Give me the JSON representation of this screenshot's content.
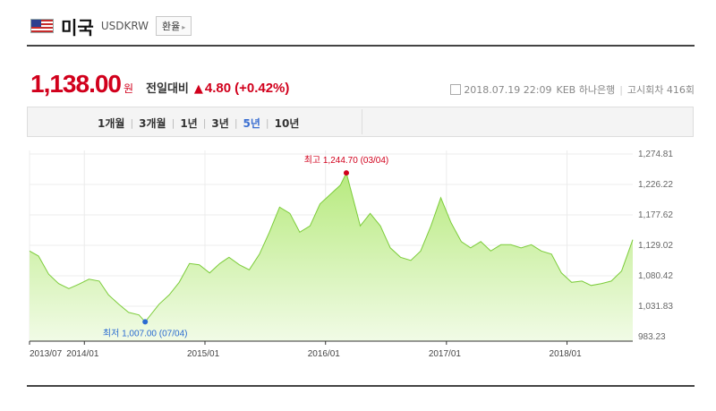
{
  "header": {
    "country": "미국",
    "code": "USDKRW",
    "rate_button": "환율"
  },
  "price": {
    "value": "1,138.00",
    "unit": "원",
    "compare_label": "전일대비",
    "change": "4.80",
    "change_pct": "(+0.42%)"
  },
  "meta": {
    "datetime": "2018.07.19 22:09",
    "bank": "KEB 하나은행",
    "notice": "고시회차 416회"
  },
  "tabs": [
    {
      "label": "1개월",
      "active": false
    },
    {
      "label": "3개월",
      "active": false
    },
    {
      "label": "1년",
      "active": false
    },
    {
      "label": "3년",
      "active": false
    },
    {
      "label": "5년",
      "active": true
    },
    {
      "label": "10년",
      "active": false
    }
  ],
  "colors": {
    "up": "#d1001c",
    "min": "#2b6bd1",
    "area_top": "#b7ea7e",
    "area_bottom": "#f1fbe6",
    "line": "#7ccc3a"
  },
  "chart_data": {
    "type": "area",
    "x_tick_labels": [
      "2013/07",
      "2014/01",
      "2015/01",
      "2016/01",
      "2017/01",
      "2018/01"
    ],
    "y_tick_labels": [
      "1,274.81",
      "1,226.22",
      "1,177.62",
      "1,129.02",
      "1,080.42",
      "1,031.83",
      "983.23"
    ],
    "ylim": [
      983.23,
      1274.81
    ],
    "annotations": {
      "max": {
        "label": "최고 1,244.70 (03/04)",
        "value": 1244.7
      },
      "min": {
        "label": "최저 1,007.00 (07/04)",
        "value": 1007.0
      }
    },
    "x": [
      "2013-07-19",
      "2013-08-15",
      "2013-09-15",
      "2013-10-15",
      "2013-11-15",
      "2013-12-15",
      "2014-01-15",
      "2014-02-15",
      "2014-03-15",
      "2014-04-15",
      "2014-05-15",
      "2014-06-15",
      "2014-07-04",
      "2014-08-15",
      "2014-09-15",
      "2014-10-15",
      "2014-11-15",
      "2014-12-15",
      "2015-01-15",
      "2015-02-15",
      "2015-03-15",
      "2015-04-15",
      "2015-05-15",
      "2015-06-15",
      "2015-07-15",
      "2015-08-15",
      "2015-09-15",
      "2015-10-15",
      "2015-11-15",
      "2015-12-15",
      "2016-01-15",
      "2016-02-15",
      "2016-03-04",
      "2016-04-15",
      "2016-05-15",
      "2016-06-15",
      "2016-07-15",
      "2016-08-15",
      "2016-09-15",
      "2016-10-15",
      "2016-11-15",
      "2016-12-15",
      "2017-01-15",
      "2017-02-15",
      "2017-03-15",
      "2017-04-15",
      "2017-05-15",
      "2017-06-15",
      "2017-07-15",
      "2017-08-15",
      "2017-09-15",
      "2017-10-15",
      "2017-11-15",
      "2017-12-15",
      "2018-01-15",
      "2018-02-15",
      "2018-03-15",
      "2018-04-15",
      "2018-05-15",
      "2018-06-15",
      "2018-07-19"
    ],
    "values": [
      1120,
      1112,
      1083,
      1068,
      1060,
      1067,
      1075,
      1072,
      1050,
      1035,
      1022,
      1018,
      1007,
      1035,
      1050,
      1070,
      1100,
      1098,
      1085,
      1100,
      1110,
      1098,
      1090,
      1115,
      1150,
      1190,
      1180,
      1150,
      1160,
      1195,
      1210,
      1225,
      1244.7,
      1160,
      1180,
      1160,
      1125,
      1110,
      1105,
      1120,
      1160,
      1205,
      1165,
      1135,
      1125,
      1135,
      1120,
      1130,
      1130,
      1125,
      1130,
      1120,
      1115,
      1085,
      1070,
      1072,
      1065,
      1068,
      1072,
      1088,
      1138
    ]
  }
}
